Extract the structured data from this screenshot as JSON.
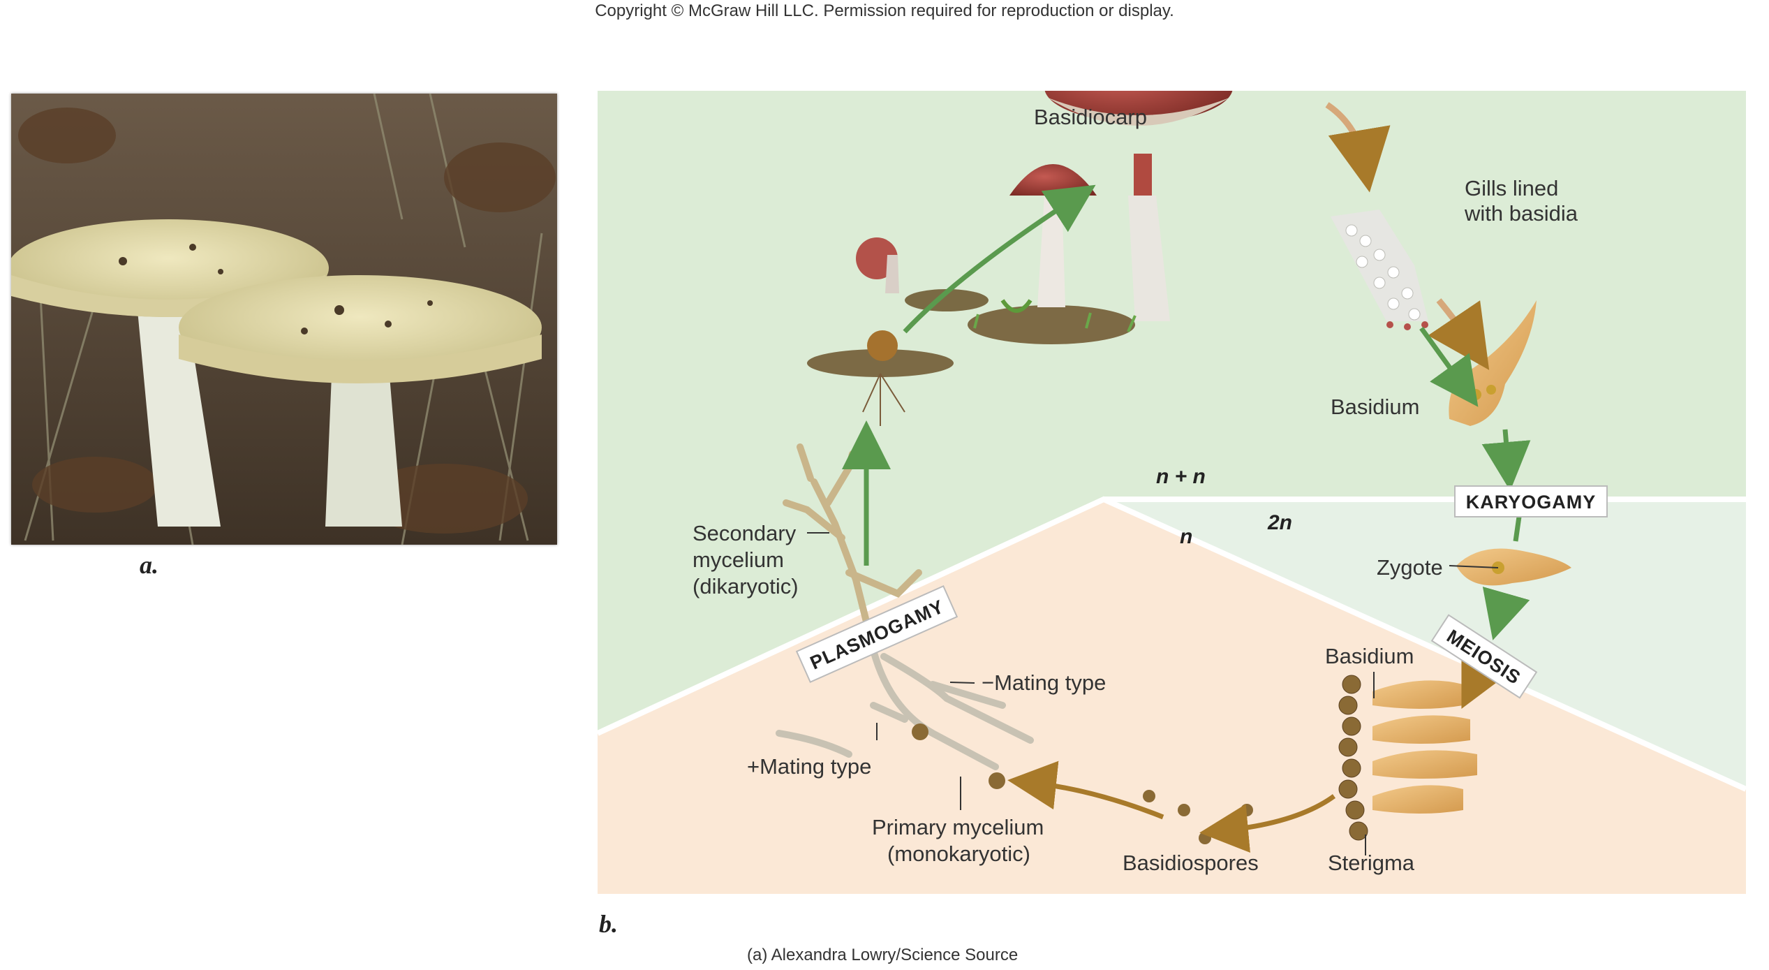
{
  "copyright": "Copyright © McGraw Hill LLC. Permission required for reproduction or display.",
  "panel_a_label": "a.",
  "panel_b_label": "b.",
  "credit": "(a) Alexandra Lowry/Science Source",
  "labels": {
    "basidiocarp": "Basidiocarp",
    "gills_line1": "Gills lined",
    "gills_line2": "with basidia",
    "basidium_top": "Basidium",
    "karyogamy": "KARYOGAMY",
    "zygote": "Zygote",
    "meiosis": "MEIOSIS",
    "basidium_bottom": "Basidium",
    "sterigma": "Sterigma",
    "basidiospores": "Basidiospores",
    "primary_line1": "Primary mycelium",
    "primary_line2": "(monokaryotic)",
    "plus_mating": "+Mating type",
    "minus_mating": "−Mating type",
    "plasmogamy": "PLASMOGAMY",
    "secondary_line1": "Secondary",
    "secondary_line2": "mycelium",
    "secondary_line3": "(dikaryotic)",
    "n_plus_n": "n + n",
    "two_n": "2n",
    "n": "n"
  },
  "colors": {
    "dikaryotic_zone": "#dcecd6",
    "diploid_zone": "#e6f1e6",
    "haploid_zone": "#fbe8d6",
    "green_arrow": "#5a9a4e",
    "brown_arrow": "#a87a2a"
  }
}
